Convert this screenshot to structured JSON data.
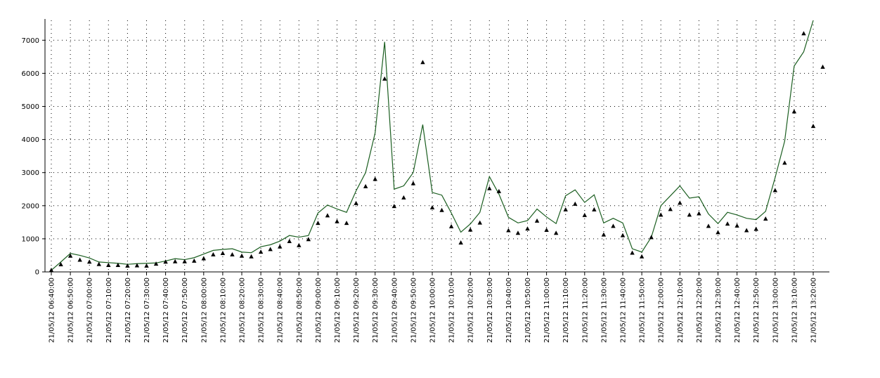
{
  "chart_data": {
    "type": "line",
    "title": "",
    "xlabel": "",
    "ylabel": "",
    "grid": true,
    "legend": "none",
    "ylim": [
      0,
      7600
    ],
    "yticks": [
      0,
      1000,
      2000,
      3000,
      4000,
      5000,
      6000,
      7000
    ],
    "x_start": "21/05/12 06:40:00",
    "x_step_minutes": 5,
    "x": [
      "21/05/12 06:40:00",
      "21/05/12 06:45:00",
      "21/05/12 06:50:00",
      "21/05/12 06:55:00",
      "21/05/12 07:00:00",
      "21/05/12 07:05:00",
      "21/05/12 07:10:00",
      "21/05/12 07:15:00",
      "21/05/12 07:20:00",
      "21/05/12 07:25:00",
      "21/05/12 07:30:00",
      "21/05/12 07:35:00",
      "21/05/12 07:40:00",
      "21/05/12 07:45:00",
      "21/05/12 07:50:00",
      "21/05/12 07:55:00",
      "21/05/12 08:00:00",
      "21/05/12 08:05:00",
      "21/05/12 08:10:00",
      "21/05/12 08:15:00",
      "21/05/12 08:20:00",
      "21/05/12 08:25:00",
      "21/05/12 08:30:00",
      "21/05/12 08:35:00",
      "21/05/12 08:40:00",
      "21/05/12 08:45:00",
      "21/05/12 08:50:00",
      "21/05/12 08:55:00",
      "21/05/12 09:00:00",
      "21/05/12 09:05:00",
      "21/05/12 09:10:00",
      "21/05/12 09:15:00",
      "21/05/12 09:20:00",
      "21/05/12 09:25:00",
      "21/05/12 09:30:00",
      "21/05/12 09:35:00",
      "21/05/12 09:40:00",
      "21/05/12 09:45:00",
      "21/05/12 09:50:00",
      "21/05/12 09:55:00",
      "21/05/12 10:00:00",
      "21/05/12 10:05:00",
      "21/05/12 10:10:00",
      "21/05/12 10:15:00",
      "21/05/12 10:20:00",
      "21/05/12 10:25:00",
      "21/05/12 10:30:00",
      "21/05/12 10:35:00",
      "21/05/12 10:40:00",
      "21/05/12 10:45:00",
      "21/05/12 10:50:00",
      "21/05/12 10:55:00",
      "21/05/12 11:00:00",
      "21/05/12 11:05:00",
      "21/05/12 11:10:00",
      "21/05/12 11:15:00",
      "21/05/12 11:20:00",
      "21/05/12 11:25:00",
      "21/05/12 11:30:00",
      "21/05/12 11:35:00",
      "21/05/12 11:40:00",
      "21/05/12 11:45:00",
      "21/05/12 11:50:00",
      "21/05/12 11:55:00",
      "21/05/12 12:00:00",
      "21/05/12 12:05:00",
      "21/05/12 12:10:00",
      "21/05/12 12:15:00",
      "21/05/12 12:20:00",
      "21/05/12 12:25:00",
      "21/05/12 12:30:00",
      "21/05/12 12:35:00",
      "21/05/12 12:40:00",
      "21/05/12 12:45:00",
      "21/05/12 12:50:00",
      "21/05/12 12:55:00",
      "21/05/12 13:00:00",
      "21/05/12 13:05:00",
      "21/05/12 13:10:00",
      "21/05/12 13:15:00",
      "21/05/12 13:20:00",
      "21/05/12 13:25:00"
    ],
    "x_tick_labels": [
      "21/05/12 06:40:00",
      "21/05/12 06:50:00",
      "21/05/12 07:00:00",
      "21/05/12 07:10:00",
      "21/05/12 07:20:00",
      "21/05/12 07:30:00",
      "21/05/12 07:40:00",
      "21/05/12 07:50:00",
      "21/05/12 08:00:00",
      "21/05/12 08:10:00",
      "21/05/12 08:20:00",
      "21/05/12 08:30:00",
      "21/05/12 08:40:00",
      "21/05/12 08:50:00",
      "21/05/12 09:00:00",
      "21/05/12 09:10:00",
      "21/05/12 09:20:00",
      "21/05/12 09:30:00",
      "21/05/12 09:40:00",
      "21/05/12 09:50:00",
      "21/05/12 10:00:00",
      "21/05/12 10:10:00",
      "21/05/12 10:20:00",
      "21/05/12 10:30:00",
      "21/05/12 10:40:00",
      "21/05/12 10:50:00",
      "21/05/12 11:00:00",
      "21/05/12 11:10:00",
      "21/05/12 11:20:00",
      "21/05/12 11:30:00",
      "21/05/12 11:40:00",
      "21/05/12 11:50:00",
      "21/05/12 12:00:00",
      "21/05/12 12:10:00",
      "21/05/12 12:20:00",
      "21/05/12 12:30:00",
      "21/05/12 12:40:00",
      "21/05/12 12:50:00",
      "21/05/12 13:00:00",
      "21/05/12 13:10:00",
      "21/05/12 13:20:00"
    ],
    "series": [
      {
        "style": "line",
        "color": "#1b5e20",
        "values": [
          50,
          300,
          560,
          500,
          420,
          300,
          280,
          260,
          230,
          250,
          260,
          270,
          330,
          400,
          370,
          430,
          540,
          650,
          680,
          700,
          600,
          580,
          760,
          820,
          930,
          1100,
          1050,
          1100,
          1780,
          2020,
          1900,
          1800,
          2450,
          3000,
          4200,
          6950,
          2500,
          2600,
          3000,
          4450,
          2400,
          2320,
          1780,
          1200,
          1450,
          1800,
          2880,
          2350,
          1650,
          1480,
          1550,
          1900,
          1660,
          1460,
          2300,
          2480,
          2100,
          2330,
          1480,
          1620,
          1480,
          700,
          600,
          1050,
          2000,
          2300,
          2600,
          2230,
          2270,
          1750,
          1460,
          1800,
          1720,
          1620,
          1580,
          1830,
          2850,
          3950,
          6220,
          6650,
          7600,
          null
        ]
      },
      {
        "style": "markers",
        "marker": "triangle",
        "color": "#000000",
        "values": [
          50,
          220,
          480,
          360,
          300,
          230,
          200,
          200,
          180,
          190,
          180,
          240,
          300,
          310,
          310,
          330,
          400,
          520,
          560,
          520,
          480,
          460,
          600,
          680,
          760,
          920,
          800,
          980,
          1470,
          1700,
          1520,
          1470,
          2070,
          2580,
          2800,
          5830,
          1980,
          2240,
          2670,
          6330,
          1940,
          1860,
          1370,
          880,
          1270,
          1480,
          2520,
          2430,
          1250,
          1170,
          1300,
          1540,
          1260,
          1170,
          1880,
          2050,
          1710,
          1880,
          1120,
          1380,
          1100,
          570,
          460,
          1040,
          1720,
          1890,
          2080,
          1720,
          1760,
          1380,
          1190,
          1450,
          1390,
          1250,
          1290,
          1600,
          2460,
          3290,
          4840,
          7200,
          4400,
          6190
        ]
      }
    ]
  }
}
